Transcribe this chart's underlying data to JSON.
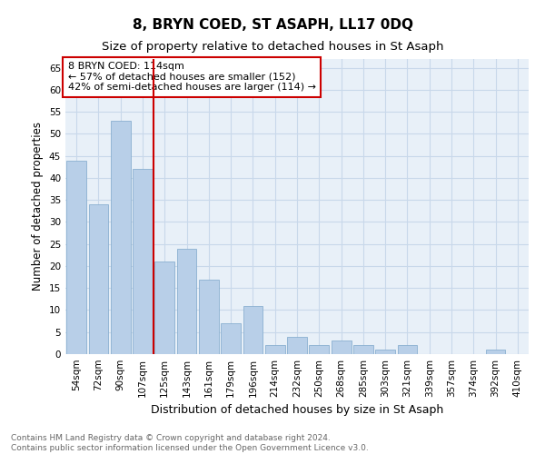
{
  "title": "8, BRYN COED, ST ASAPH, LL17 0DQ",
  "subtitle": "Size of property relative to detached houses in St Asaph",
  "xlabel": "Distribution of detached houses by size in St Asaph",
  "ylabel": "Number of detached properties",
  "categories": [
    "54sqm",
    "72sqm",
    "90sqm",
    "107sqm",
    "125sqm",
    "143sqm",
    "161sqm",
    "179sqm",
    "196sqm",
    "214sqm",
    "232sqm",
    "250sqm",
    "268sqm",
    "285sqm",
    "303sqm",
    "321sqm",
    "339sqm",
    "357sqm",
    "374sqm",
    "392sqm",
    "410sqm"
  ],
  "values": [
    44,
    34,
    53,
    42,
    21,
    24,
    17,
    7,
    11,
    2,
    4,
    2,
    3,
    2,
    1,
    2,
    0,
    0,
    0,
    1,
    0
  ],
  "bar_color": "#b8cfe8",
  "bar_edge_color": "#8ab0d0",
  "grid_color": "#c8d8ea",
  "background_color": "#f0f4f8",
  "plot_bg_color": "#e8f0f8",
  "vline_x": 3.5,
  "vline_color": "#cc0000",
  "annotation_text": "8 BRYN COED: 114sqm\n← 57% of detached houses are smaller (152)\n42% of semi-detached houses are larger (114) →",
  "annotation_box_color": "#ffffff",
  "annotation_box_edge": "#cc0000",
  "ylim": [
    0,
    67
  ],
  "yticks": [
    0,
    5,
    10,
    15,
    20,
    25,
    30,
    35,
    40,
    45,
    50,
    55,
    60,
    65
  ],
  "footnote": "Contains HM Land Registry data © Crown copyright and database right 2024.\nContains public sector information licensed under the Open Government Licence v3.0.",
  "title_fontsize": 11,
  "subtitle_fontsize": 9.5,
  "xlabel_fontsize": 9,
  "ylabel_fontsize": 8.5,
  "tick_fontsize": 7.5,
  "annotation_fontsize": 8,
  "footnote_fontsize": 6.5
}
